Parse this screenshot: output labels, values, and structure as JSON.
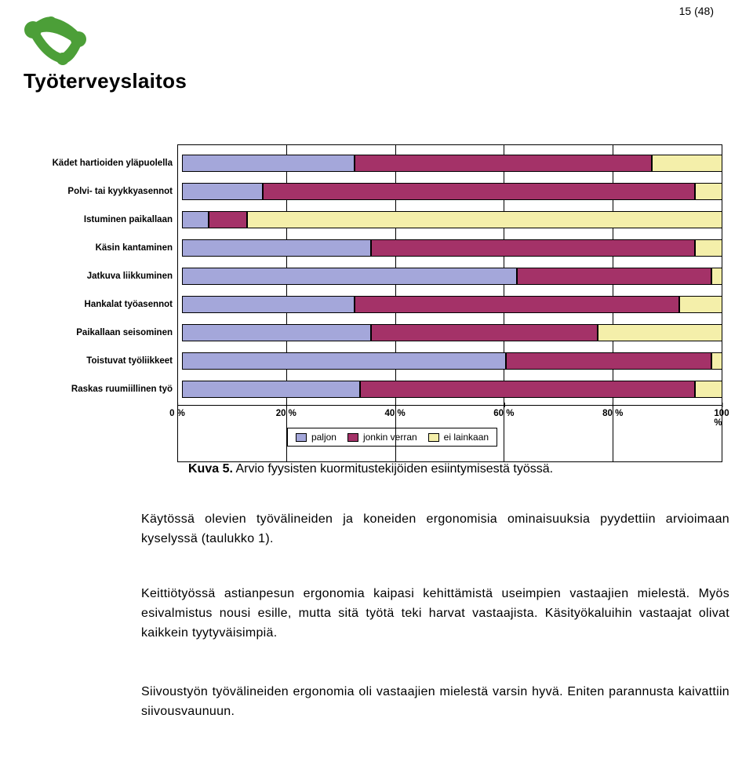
{
  "page_number": "15 (48)",
  "logo": {
    "text": "Työterveyslaitos",
    "color": "#4c9f38"
  },
  "chart": {
    "type": "bar-stacked-horizontal",
    "categories": [
      "Kädet hartioiden yläpuolella",
      "Polvi- tai kyykkyasennot",
      "Istuminen paikallaan",
      "Käsin kantaminen",
      "Jatkuva liikkuminen",
      "Hankalat työasennot",
      "Paikallaan seisominen",
      "Toistuvat työliikkeet",
      "Raskas ruumiillinen työ"
    ],
    "series_labels": [
      "paljon",
      "jonkin verran",
      "ei lainkaan"
    ],
    "series_colors": [
      "#a4a7da",
      "#a43268",
      "#f4efaa"
    ],
    "values": [
      [
        32,
        55,
        13
      ],
      [
        15,
        80,
        5
      ],
      [
        5,
        7,
        88
      ],
      [
        35,
        60,
        5
      ],
      [
        62,
        36,
        2
      ],
      [
        32,
        60,
        8
      ],
      [
        35,
        42,
        23
      ],
      [
        60,
        38,
        2
      ],
      [
        33,
        62,
        5
      ]
    ],
    "xlim": [
      0,
      100
    ],
    "xtick_step": 20,
    "xtick_labels": [
      "0 %",
      "20 %",
      "40 %",
      "60 %",
      "80 %",
      "100 %"
    ],
    "tick_fontsize": 11.5,
    "label_fontsize": 11.5,
    "border_color": "#000000",
    "background_color": "#ffffff"
  },
  "caption_bold": "Kuva 5.",
  "caption_rest": " Arvio fyysisten kuormitustekijöiden esiintymisestä työssä.",
  "para1": "Käytössä olevien työvälineiden ja koneiden ergonomisia ominaisuuksia pyydettiin arvioimaan kyselyssä (taulukko 1).",
  "para2": "Keittiötyössä astianpesun ergonomia kaipasi kehittämistä useimpien vastaajien mielestä. Myös esivalmistus nousi esille, mutta sitä työtä teki harvat vastaajista. Käsityökaluihin vastaajat olivat kaikkein tyytyväisimpiä.",
  "para3": "Siivoustyön työvälineiden ergonomia oli vastaajien mielestä varsin hyvä. Eniten parannusta kaivattiin siivousvaunuun."
}
